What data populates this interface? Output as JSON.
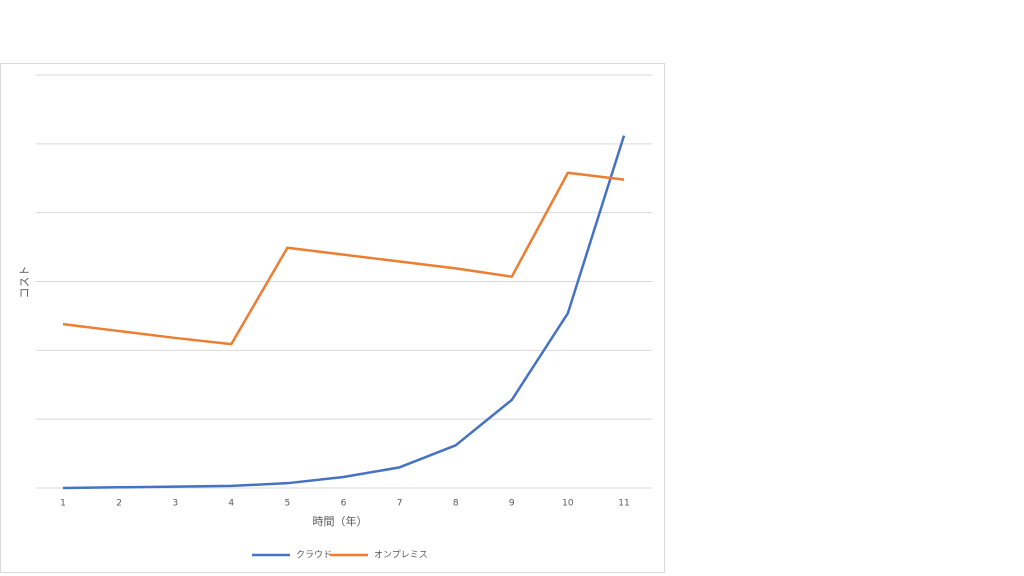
{
  "chart_data": {
    "type": "line",
    "x_label": "時間（年）",
    "y_label": "コスト",
    "categories": [
      "1",
      "2",
      "3",
      "4",
      "5",
      "6",
      "7",
      "8",
      "9",
      "10",
      "11"
    ],
    "series": [
      {
        "name": "クラウド",
        "color": "#4472c4",
        "values": [
          0,
          0.01,
          0.02,
          0.03,
          0.07,
          0.16,
          0.3,
          0.62,
          1.28,
          2.54,
          5.12
        ]
      },
      {
        "name": "オンプレミス",
        "color": "#ed7d31",
        "values": [
          2.38,
          2.28,
          2.18,
          2.09,
          3.49,
          3.39,
          3.29,
          3.19,
          3.07,
          4.58,
          4.48
        ]
      }
    ],
    "ylim": [
      0,
      6
    ],
    "yticks": [
      0,
      1,
      2,
      3,
      4,
      5,
      6
    ],
    "show_ytick_labels": false,
    "grid": true,
    "legend": "bottom"
  }
}
